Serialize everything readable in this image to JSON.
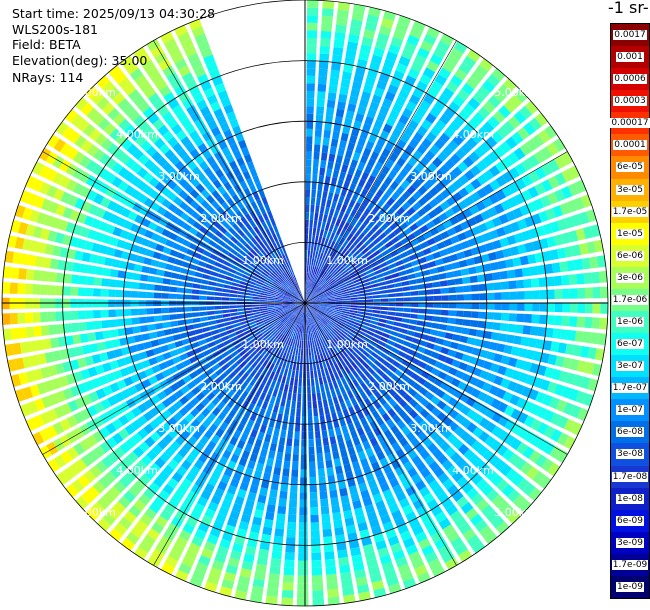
{
  "info": {
    "start_time": "Start time: 2025/09/13 04:30:28",
    "instrument": "WLS200s-181",
    "field": "Field: BETA",
    "elevation": "Elevation(deg): 35.00",
    "nrays": "NRays: 114"
  },
  "chart_data": {
    "type": "heatmap",
    "projection": "polar-ppi",
    "field": "BETA",
    "colorbar_title": "-1 sr-",
    "scale": "log",
    "colorbar_ticks": [
      "0.0017",
      "0.001",
      "0.0006",
      "0.0003",
      "0.00017",
      "0.0001",
      "6e-05",
      "3e-05",
      "1.7e-05",
      "1e-05",
      "6e-06",
      "3e-06",
      "1.7e-06",
      "1e-06",
      "6e-07",
      "3e-07",
      "1.7e-07",
      "1e-07",
      "6e-08",
      "3e-08",
      "1.7e-08",
      "1e-08",
      "6e-09",
      "3e-09",
      "1.7e-09",
      "1e-09"
    ],
    "colorbar_colors": [
      "#8b0000",
      "#b20000",
      "#d40000",
      "#f01000",
      "#ff3000",
      "#ff5a00",
      "#ff8a00",
      "#ffb000",
      "#ffd000",
      "#ffff00",
      "#d8ff30",
      "#a8ff58",
      "#78ff88",
      "#40ffc0",
      "#10fff0",
      "#00e0ff",
      "#00b8ff",
      "#0090ff",
      "#0070e8",
      "#1050e0",
      "#1838d0",
      "#1020c8",
      "#0010e0",
      "#0000c0",
      "#000098",
      "#000070"
    ],
    "range_rings_km": [
      1,
      2,
      3,
      4,
      5
    ],
    "ring_labels": [
      "1.00km",
      "2.00km",
      "3.00km",
      "4.00km",
      "5.00km"
    ],
    "max_range_km": 5.0,
    "azimuth_gap_deg": [
      340,
      360
    ],
    "gridlines_deg": [
      0,
      30,
      60,
      90,
      120,
      150,
      180,
      210,
      240,
      270,
      300,
      330
    ],
    "profile": [
      {
        "range_km": 0.0,
        "beta": 2e-08
      },
      {
        "range_km": 1.0,
        "beta": 2.5e-08
      },
      {
        "range_km": 2.0,
        "beta": 5e-08
      },
      {
        "range_km": 3.0,
        "beta": 1e-07
      },
      {
        "range_km": 4.0,
        "beta": 3e-07
      },
      {
        "range_km": 4.5,
        "beta": 1e-06
      },
      {
        "range_km": 5.0,
        "beta": 2e-06
      }
    ]
  }
}
